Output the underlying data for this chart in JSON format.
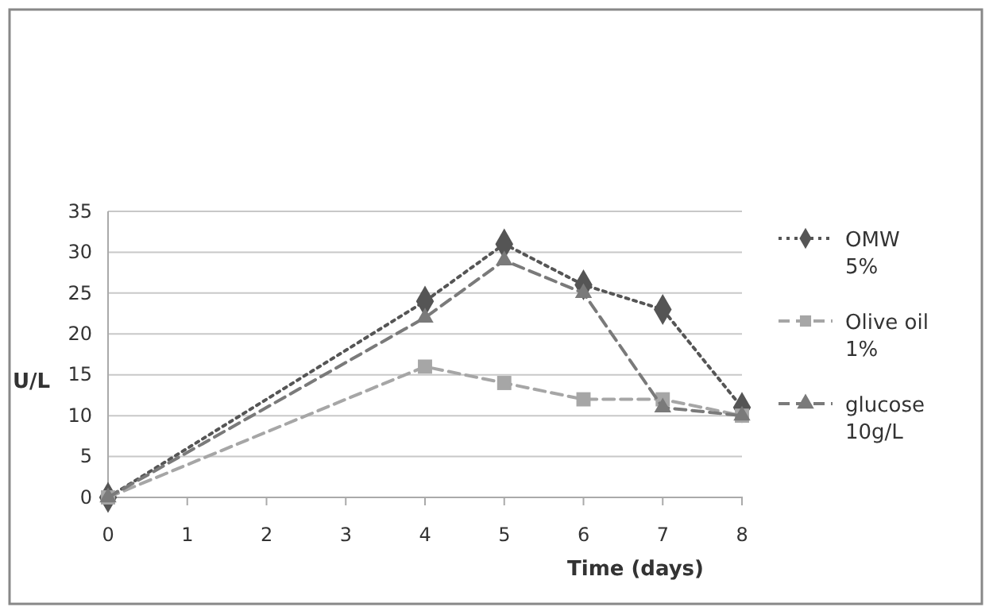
{
  "chart_data": {
    "type": "line",
    "xlabel": "Time (days)",
    "ylabel": "U/L",
    "x": [
      0,
      4,
      5,
      6,
      7,
      8
    ],
    "xlim": [
      0,
      8
    ],
    "xticks": [
      0,
      1,
      2,
      3,
      4,
      5,
      6,
      7,
      8
    ],
    "ylim": [
      0,
      35
    ],
    "yticks": [
      0,
      5,
      10,
      15,
      20,
      25,
      30,
      35
    ],
    "grid": "y",
    "legend": "right",
    "series": [
      {
        "name": "OMW 5%",
        "color": "#555555",
        "values": [
          0,
          24,
          31,
          26,
          23,
          11
        ],
        "marker": "diamond",
        "line_style": "dotted"
      },
      {
        "name": "Olive oil 1%",
        "color": "#a6a6a6",
        "values": [
          0,
          16,
          14,
          12,
          12,
          10
        ],
        "marker": "square",
        "line_style": "dashed"
      },
      {
        "name": "glucose 10g/L",
        "color": "#7a7a7a",
        "values": [
          0,
          22,
          29,
          25,
          11,
          10
        ],
        "marker": "triangle",
        "line_style": "dashed"
      }
    ]
  }
}
